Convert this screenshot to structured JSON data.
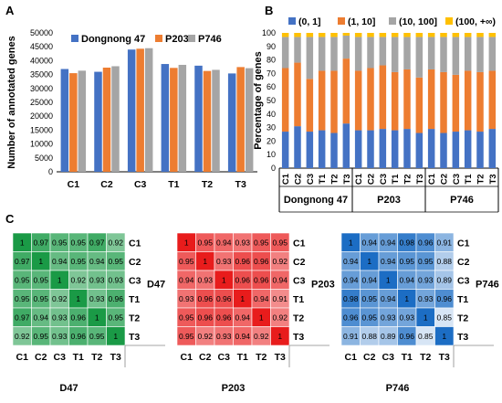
{
  "panels": {
    "a": "A",
    "b": "B",
    "c": "C"
  },
  "chart_data": [
    {
      "type": "bar",
      "panel": "A",
      "ylabel": "Number of annotated genes",
      "ylim": [
        0,
        50000
      ],
      "yticks": [
        "0",
        "5000",
        "10000",
        "15000",
        "20000",
        "25000",
        "30000",
        "35000",
        "40000",
        "45000",
        "50000"
      ],
      "categories": [
        "C1",
        "C2",
        "C3",
        "T1",
        "T2",
        "T3"
      ],
      "legend_position": "top",
      "series": [
        {
          "name": "Dongnong 47",
          "color": "#4472C4",
          "values": [
            37000,
            36000,
            44000,
            38800,
            38200,
            35400
          ]
        },
        {
          "name": "P203",
          "color": "#ED7D31",
          "values": [
            35500,
            37500,
            44300,
            37400,
            36300,
            37700
          ]
        },
        {
          "name": "P746",
          "color": "#A5A5A5",
          "values": [
            36400,
            38000,
            44500,
            38500,
            36700,
            37300
          ]
        }
      ]
    },
    {
      "type": "bar",
      "stacked": true,
      "panel": "B",
      "ylabel": "Percentage of genes",
      "ylim": [
        0,
        100
      ],
      "yticks": [
        "0",
        "10",
        "20",
        "30",
        "40",
        "50",
        "60",
        "70",
        "80",
        "90",
        "100"
      ],
      "categories": [
        "C1",
        "C2",
        "C3",
        "T1",
        "T2",
        "T3",
        "C1",
        "C2",
        "C3",
        "T1",
        "T2",
        "T3",
        "C1",
        "C2",
        "C3",
        "T1",
        "T2",
        "T3"
      ],
      "groups": [
        "Dongnong 47",
        "P203",
        "P746"
      ],
      "legend_position": "top",
      "series": [
        {
          "name": "(0, 1]",
          "color": "#4472C4",
          "values": [
            27,
            31,
            27,
            28,
            26,
            33,
            28,
            28,
            29,
            28,
            29,
            26,
            29,
            26,
            27,
            28,
            27,
            29
          ]
        },
        {
          "name": "(1, 10]",
          "color": "#ED7D31",
          "values": [
            47,
            47,
            39,
            44,
            46,
            48,
            44,
            46,
            47,
            43,
            44,
            41,
            44,
            45,
            42,
            44,
            44,
            43
          ]
        },
        {
          "name": "(10, 100]",
          "color": "#A5A5A5",
          "values": [
            23,
            19,
            31,
            25,
            25,
            17,
            25,
            23,
            21,
            26,
            24,
            30,
            24,
            26,
            28,
            25,
            26,
            25
          ]
        },
        {
          "name": "(100, +∞)",
          "color": "#FFC000",
          "values": [
            3,
            3,
            3,
            3,
            3,
            2,
            3,
            3,
            3,
            3,
            3,
            3,
            3,
            3,
            3,
            3,
            3,
            3
          ]
        }
      ]
    },
    {
      "type": "heatmap",
      "panel": "C",
      "title": "D47",
      "base_color": "#1a9a46",
      "labels": [
        "C1",
        "C2",
        "C3",
        "T1",
        "T2",
        "T3"
      ],
      "values": [
        [
          1,
          0.97,
          0.95,
          0.95,
          0.97,
          0.92
        ],
        [
          0.97,
          1,
          0.94,
          0.95,
          0.94,
          0.95
        ],
        [
          0.95,
          0.95,
          1,
          0.92,
          0.93,
          0.93
        ],
        [
          0.95,
          0.95,
          0.92,
          1,
          0.93,
          0.96
        ],
        [
          0.97,
          0.94,
          0.93,
          0.96,
          1,
          0.95
        ],
        [
          0.92,
          0.95,
          0.93,
          0.96,
          0.95,
          1
        ]
      ]
    },
    {
      "type": "heatmap",
      "panel": "C",
      "title": "P203",
      "base_color": "#e81c1c",
      "labels": [
        "C1",
        "C2",
        "C3",
        "T1",
        "T2",
        "T3"
      ],
      "values": [
        [
          1,
          0.95,
          0.94,
          0.93,
          0.95,
          0.95
        ],
        [
          0.95,
          1,
          0.93,
          0.96,
          0.96,
          0.92
        ],
        [
          0.94,
          0.93,
          1,
          0.96,
          0.96,
          0.94
        ],
        [
          0.93,
          0.96,
          0.96,
          1,
          0.94,
          0.91
        ],
        [
          0.95,
          0.96,
          0.96,
          0.94,
          1,
          0.92
        ],
        [
          0.95,
          0.92,
          0.93,
          0.94,
          0.92,
          1
        ]
      ]
    },
    {
      "type": "heatmap",
      "panel": "C",
      "title": "P746",
      "base_color": "#1c6dc4",
      "labels": [
        "C1",
        "C2",
        "C3",
        "T1",
        "T2",
        "T3"
      ],
      "values": [
        [
          1,
          0.94,
          0.94,
          0.98,
          0.96,
          0.91
        ],
        [
          0.94,
          1,
          0.94,
          0.95,
          0.95,
          0.88
        ],
        [
          0.94,
          0.94,
          1,
          0.94,
          0.93,
          0.89
        ],
        [
          0.98,
          0.95,
          0.94,
          1,
          0.93,
          0.96
        ],
        [
          0.96,
          0.95,
          0.93,
          0.93,
          1,
          0.85
        ],
        [
          0.91,
          0.88,
          0.89,
          0.96,
          0.85,
          1
        ]
      ]
    }
  ]
}
